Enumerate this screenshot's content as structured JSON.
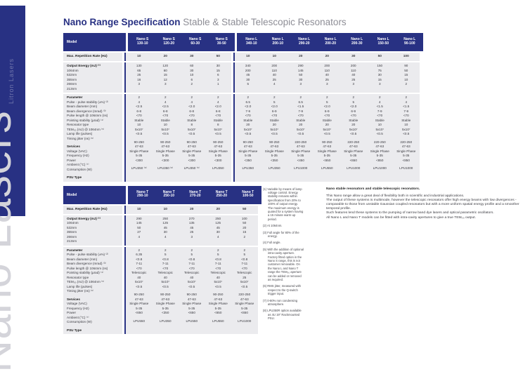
{
  "page": {
    "title_bold": "Nano Range Specification",
    "title_rest": "Stable & Stable Telescopic Resonators",
    "side_text": "Nano Lasers",
    "strip_text": "Litron Lasers"
  },
  "colors": {
    "navy": "#283183",
    "body_gray": "#ebebee",
    "giant_text": "#d4d4da"
  },
  "table1": {
    "model_label": "Model",
    "groups": [
      {
        "cols": [
          [
            "Nano S",
            "130-10"
          ],
          [
            "Nano S",
            "120-20"
          ],
          [
            "Nano S",
            "60-30"
          ],
          [
            "Nano S",
            "30-50"
          ]
        ]
      },
      {
        "cols": [
          [
            "Nano L",
            "340-10"
          ],
          [
            "Nano L",
            "200-10"
          ],
          [
            "Nano L",
            "290-20"
          ],
          [
            "Nano L",
            "200-20"
          ],
          [
            "Nano L",
            "200-30"
          ],
          [
            "Nano L",
            "150-50"
          ],
          [
            "Nano L",
            "90-100"
          ]
        ]
      }
    ],
    "blocks": [
      {
        "kind": "single",
        "rows": [
          {
            "label": "Max. Repetition Rate (Hz)",
            "lb": true,
            "vb": true,
            "values": [
              "10",
              "20",
              "30",
              "50",
              "10",
              "10",
              "20",
              "20",
              "30",
              "50",
              "100"
            ]
          }
        ]
      },
      {
        "rows": [
          {
            "label": "Output Energy (mJ) ⁽¹⁾",
            "head": true
          },
          {
            "label": "1064nm",
            "values": [
              "130",
              "120",
              "60",
              "30",
              "340",
              "200",
              "290",
              "200",
              "200",
              "150",
              "90"
            ]
          },
          {
            "label": "532nm",
            "values": [
              "65",
              "60",
              "30",
              "15",
              "200",
              "110",
              "145",
              "110",
              "110",
              "75",
              "50"
            ]
          },
          {
            "label": "355nm",
            "values": [
              "25",
              "15",
              "10",
              "6",
              "45",
              "40",
              "50",
              "40",
              "40",
              "30",
              "15"
            ]
          },
          {
            "label": "266nm",
            "values": [
              "16",
              "12",
              "6",
              "3",
              "30",
              "25",
              "30",
              "25",
              "25",
              "15",
              "10"
            ]
          },
          {
            "label": "213nm",
            "values": [
              "3",
              "3",
              "2",
              "1",
              "5",
              "4",
              "3",
              "3",
              "3",
              "3",
              "2"
            ]
          }
        ]
      },
      {
        "rows": [
          {
            "label": "Parameter",
            "head": true
          },
          {
            "label": "Pulse - pulse stability (±%) ⁽²⁾",
            "values": [
              "2",
              "2",
              "2",
              "2",
              "2",
              "2",
              "2",
              "2",
              "2",
              "2",
              "2"
            ]
          },
          {
            "label": "Beam diameter (mm)",
            "values": [
              "4",
              "4",
              "4",
              "4",
              "6.5",
              "5",
              "6.5",
              "5",
              "5",
              "4",
              "4"
            ]
          },
          {
            "label": "Beam divergence (mrad) ⁽³⁾",
            "values": [
              "<2.5",
              "<2.5",
              "<2.0",
              "<2.0",
              "<2.0",
              "<2.0",
              "<1.5",
              "<2.0",
              "<2.0",
              "<1.5",
              "<1.5"
            ]
          },
          {
            "label": "Pulse length @ 1064nm (ns)",
            "values": [
              "6-8",
              "6-8",
              "6-8",
              "6-8",
              "7-9",
              "6-9",
              "7-9",
              "6-9",
              "6-9",
              "7-9",
              "7-9"
            ]
          },
          {
            "label": "Pointing stability (µrad) ⁽⁴⁾",
            "values": [
              "<70",
              "<70",
              "<70",
              "<70",
              "<70",
              "<70",
              "<70",
              "<70",
              "<70",
              "<70",
              "<70"
            ]
          },
          {
            "label": "Resonator type",
            "values": [
              "Stable",
              "Stable",
              "Stable",
              "Stable",
              "Stable",
              "Stable",
              "Stable",
              "Stable",
              "Stable",
              "Stable",
              "Stable"
            ]
          },
          {
            "label": "TEM₀₀ (mJ) @ 1064nm ⁽⁵⁾",
            "values": [
              "10",
              "10",
              "8",
              "8",
              "20",
              "20",
              "20",
              "20",
              "20",
              "10",
              "10"
            ]
          },
          {
            "label": "Lamp life (pulses)",
            "values": [
              "5x10⁷",
              "5x10⁷",
              "5x10⁷",
              "5x10⁷",
              "5x10⁷",
              "5x10⁷",
              "5x10⁷",
              "5x10⁷",
              "5x10⁷",
              "5x10⁷",
              "5x10⁷"
            ]
          },
          {
            "label": "Timing jitter (ns) ⁽⁶⁾",
            "values": [
              "<0.5",
              "<0.5",
              "<0.5",
              "<0.5",
              "<0.5",
              "<0.5",
              "<0.5",
              "<0.5",
              "<0.5",
              "<0.5",
              "<0.5"
            ]
          },
          {
            "sp": true
          },
          {
            "label": "Services",
            "head": true
          },
          {
            "label": "Voltage (VAC)",
            "values": [
              "90-250",
              "90-250",
              "90-250",
              "90-250",
              "90-250",
              "90-250",
              "220-250",
              "90-250",
              "220-250",
              "220-250",
              "220-250"
            ]
          },
          {
            "label": "Frequency (Hz)",
            "values": [
              "47-63",
              "47-63",
              "47-63",
              "47-63",
              "47-63",
              "47-63",
              "47-63",
              "47-63",
              "47-63",
              "47-63",
              "47-63"
            ]
          },
          {
            "label": "Power",
            "values": [
              "Single Phase",
              "Single Phase",
              "Single Phase",
              "Single Phase",
              "Single Phase",
              "Single Phase",
              "Single Phase",
              "Single Phase",
              "Single Phase",
              "Single Phase",
              "Single Phase"
            ]
          },
          {
            "label": "Ambient (°C) ⁽⁷⁾",
            "values": [
              "5-35",
              "5-35",
              "5-35",
              "5-35",
              "5-35",
              "5-35",
              "5-35",
              "5-35",
              "5-35",
              "5-35",
              "5-35"
            ]
          },
          {
            "label": "Consumption (W)",
            "values": [
              "<300",
              "<300",
              "<300",
              "<300",
              "<350",
              "<350",
              "<450",
              "<650",
              "<650",
              "<850",
              "<850"
            ]
          },
          {
            "sp": true
          },
          {
            "label": "PSU Type",
            "lb": true,
            "values": [
              "LPU350 ⁽⁸⁾",
              "LPU350 ⁽⁸⁾",
              "LPU350 ⁽⁸⁾",
              "LPU350",
              "LPU350",
              "LPU350",
              "LPU1000",
              "LPU550",
              "LPU1000",
              "LPU1000",
              "LPU1000"
            ]
          }
        ]
      }
    ]
  },
  "table2": {
    "model_label": "Model",
    "groups": [
      {
        "cols": [
          [
            "Nano T",
            "290-10"
          ],
          [
            "Nano T",
            "250-10"
          ],
          [
            "Nano T",
            "270-20"
          ],
          [
            "Nano T",
            "250-20"
          ],
          [
            "Nano T",
            "100-50"
          ]
        ]
      }
    ],
    "blocks": [
      {
        "kind": "single",
        "rows": [
          {
            "label": "Max. Repetition Rate (Hz)",
            "lb": true,
            "vb": true,
            "values": [
              "10",
              "10",
              "20",
              "20",
              "50"
            ]
          }
        ]
      },
      {
        "rows": [
          {
            "label": "Output Energy (mJ) ⁽¹⁾",
            "head": true
          },
          {
            "label": "1064nm",
            "values": [
              "290",
              "250",
              "270",
              "250",
              "100"
            ]
          },
          {
            "label": "532nm",
            "values": [
              "145",
              "125",
              "135",
              "125",
              "50"
            ]
          },
          {
            "label": "355nm",
            "values": [
              "50",
              "45",
              "45",
              "45",
              "20"
            ]
          },
          {
            "label": "266nm",
            "values": [
              "27",
              "30",
              "25",
              "30",
              "15"
            ]
          },
          {
            "label": "213nm",
            "values": [
              "4",
              "4",
              "3",
              "4",
              "2"
            ]
          }
        ]
      },
      {
        "rows": [
          {
            "label": "Parameter",
            "head": true
          },
          {
            "label": "Pulse - pulse stability (±%) ⁽²⁾",
            "values": [
              "2",
              "2",
              "2",
              "2",
              "2"
            ]
          },
          {
            "label": "Beam diameter (mm)",
            "values": [
              "6.35",
              "5",
              "5",
              "5",
              "5"
            ]
          },
          {
            "label": "Beam divergence (mrad) ⁽³⁾",
            "values": [
              "<0.8",
              "<0.8",
              "<0.8",
              "<0.8",
              "<0.8"
            ]
          },
          {
            "label": "Pulse length @ 1064nm (ns)",
            "values": [
              "7-11",
              "7-11",
              "7-11",
              "7-11",
              "7-11"
            ]
          },
          {
            "label": "Pointing stability (µrad) ⁽⁴⁾",
            "values": [
              "<70",
              "<70",
              "<70",
              "<70",
              "<70"
            ]
          },
          {
            "label": "Resonator type",
            "values": [
              "Telescopic",
              "Telescopic",
              "Telescopic",
              "Telescopic",
              "Telescopic"
            ]
          },
          {
            "label": "TEM₀₀ (mJ) @ 1064nm ⁽⁵⁾",
            "values": [
              "40",
              "40",
              "40",
              "40",
              "25"
            ]
          },
          {
            "label": "Lamp life (pulses)",
            "values": [
              "5x10⁷",
              "5x10⁷",
              "5x10⁷",
              "5x10⁷",
              "5x10⁷"
            ]
          },
          {
            "label": "Timing jitter (ns) ⁽⁶⁾",
            "values": [
              "<0.5",
              "<0.5",
              "<0.5",
              "<0.5",
              "<0.5"
            ]
          },
          {
            "sp": true
          },
          {
            "label": "Services",
            "head": true
          },
          {
            "label": "Voltage (VAC)",
            "values": [
              "90-250",
              "90-250",
              "90-250",
              "90-250",
              "220-250"
            ]
          },
          {
            "label": "Frequency (Hz)",
            "values": [
              "47-63",
              "47-63",
              "47-63",
              "47-63",
              "47-63"
            ]
          },
          {
            "label": "Power",
            "values": [
              "Single Phase",
              "Single Phase",
              "Single Phase",
              "Single Phase",
              "Single Phase"
            ]
          },
          {
            "label": "Ambient (°C) ⁽⁷⁾",
            "values": [
              "5-35",
              "5-35",
              "5-35",
              "5-35",
              "5-35"
            ]
          },
          {
            "label": "Consumption (W)",
            "values": [
              "<650",
              "<350",
              "<650",
              "<650",
              "<650"
            ]
          },
          {
            "sp": true
          },
          {
            "label": "PSU Type",
            "lb": true,
            "values": [
              "LPU550",
              "LPU350",
              "LPU550",
              "LPU550",
              "LPU1000"
            ]
          }
        ]
      }
    ]
  },
  "footnotes": [
    "(1) Variable by means of lamp voltage control. Energy stability remains within specification from 20% to 100% of output energy. The maximum energy is quoted for a system having a 15 minute warm-up period.",
    "(2) At 1064nm.",
    "(3) Full angle for 80% of the energy.",
    "(4) Full angle.",
    "(5) With the addition of optional intra-cavity aperture. Factory fitted option in the Nano S range, this is not customer removable. On the Nano L and Nano T range the TEM₀₀ aperture can be added or removed as required.",
    "(6) RMS jitter, measured with respect to the Q-switch trigger input.",
    "(7) 0-80% non condensing atmosphere.",
    "(8) LPU350R option available as 4U 19\" Rackmounted PSU."
  ],
  "info": {
    "heading": "Nano stable resonators and stable telescopic resonators.",
    "paragraphs": [
      "This Nano range allow a great deal of flexibility both in scientific and industrial applications.",
      "The output of these systems is multimode, however the telescopic resonators offer high energy beams with low divergences - comparable to those from unstable Gaussian coupled resonators but with a more uniform spatial energy profile and a smoother temporal profile.",
      "Such features lend these systems to the pumping of narrow band dye lasers and optical parametric oscillators.",
      "All Nano L and Nano T models can be fitted with intra-cavity apertures to give a true TEM₀₀ output."
    ]
  }
}
